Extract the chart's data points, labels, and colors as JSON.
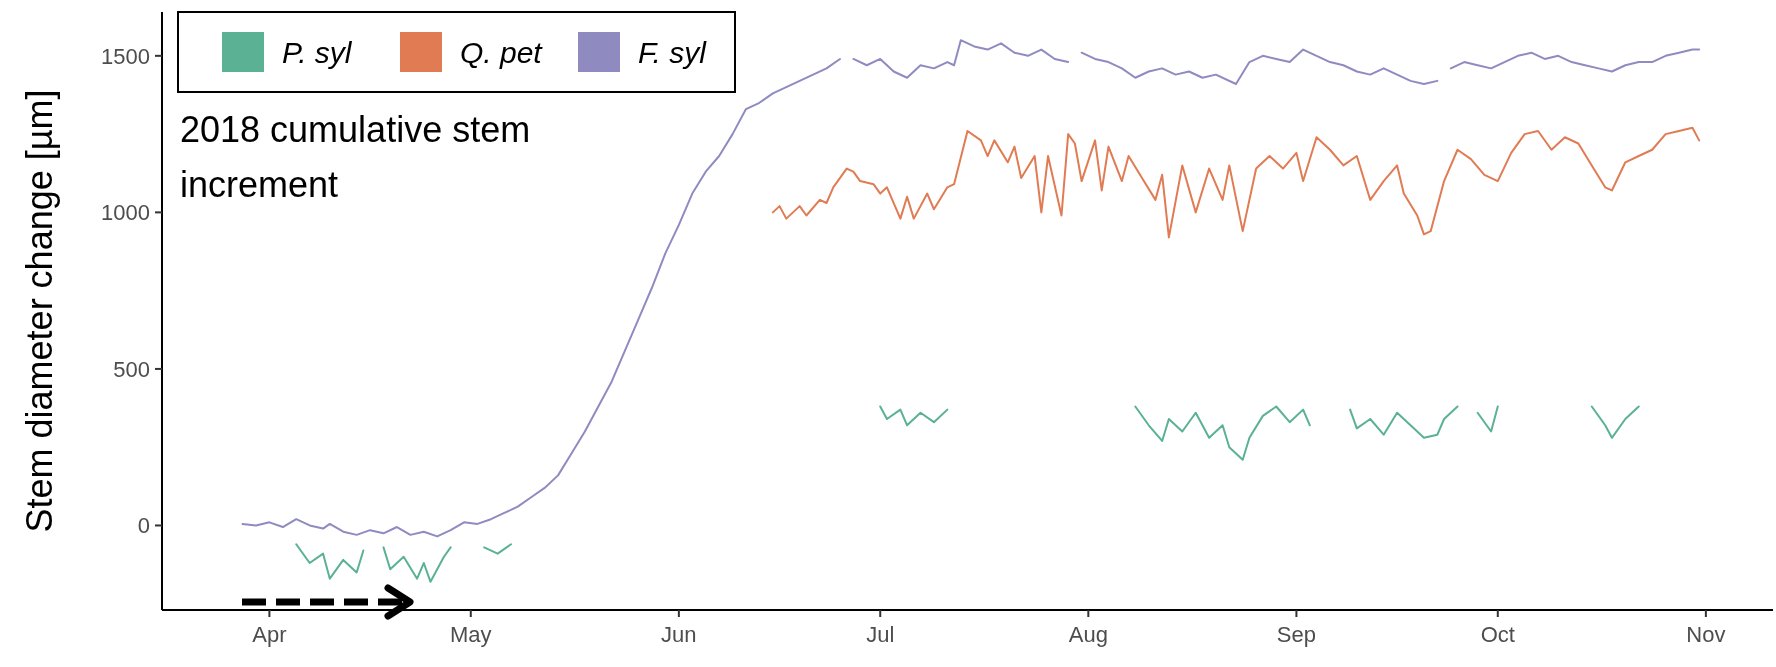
{
  "chart_data": {
    "type": "line",
    "ylabel": "Stem diameter change [µm]",
    "annotations": [
      "2018 cumulative stem increment"
    ],
    "xlim": [
      "2018-03-16",
      "2018-11-11"
    ],
    "xticks": [
      {
        "value": "2018-04-01",
        "label": "Apr"
      },
      {
        "value": "2018-05-01",
        "label": "May"
      },
      {
        "value": "2018-06-01",
        "label": "Jun"
      },
      {
        "value": "2018-07-01",
        "label": "Jul"
      },
      {
        "value": "2018-08-01",
        "label": "Aug"
      },
      {
        "value": "2018-09-01",
        "label": "Sep"
      },
      {
        "value": "2018-10-01",
        "label": "Oct"
      },
      {
        "value": "2018-11-01",
        "label": "Nov"
      }
    ],
    "ylim": [
      -270,
      1640
    ],
    "yticks": [
      0,
      500,
      1000,
      1500
    ],
    "grid": false,
    "legend": "top left",
    "series": [
      {
        "name": "P. syl",
        "color": "#5ab193",
        "x": [
          "2018-04-05",
          "2018-04-07",
          "2018-04-09",
          "2018-04-10",
          "2018-04-12",
          "2018-04-14",
          "2018-04-15",
          "2018-04-16",
          "2018-04-18",
          "2018-04-19",
          "2018-04-21",
          "2018-04-23",
          "2018-04-24",
          "2018-04-25",
          "2018-04-27",
          "2018-04-28",
          "2018-04-29",
          "2018-05-03",
          "2018-05-05",
          "2018-05-07",
          "2018-05-08",
          "2018-07-01",
          "2018-07-02",
          "2018-07-04",
          "2018-07-05",
          "2018-07-07",
          "2018-07-09",
          "2018-07-11",
          "2018-07-12",
          "2018-08-08",
          "2018-08-10",
          "2018-08-12",
          "2018-08-13",
          "2018-08-15",
          "2018-08-17",
          "2018-08-19",
          "2018-08-21",
          "2018-08-22",
          "2018-08-24",
          "2018-08-25",
          "2018-08-27",
          "2018-08-29",
          "2018-08-31",
          "2018-09-02",
          "2018-09-03",
          "2018-09-04",
          "2018-09-09",
          "2018-09-10",
          "2018-09-12",
          "2018-09-14",
          "2018-09-16",
          "2018-09-18",
          "2018-09-20",
          "2018-09-22",
          "2018-09-23",
          "2018-09-25",
          "2018-09-26",
          "2018-09-28",
          "2018-09-30",
          "2018-10-01",
          "2018-10-02",
          "2018-10-15",
          "2018-10-17",
          "2018-10-18",
          "2018-10-20",
          "2018-10-22"
        ],
        "values": [
          -60,
          -120,
          -90,
          -170,
          -110,
          -150,
          -80,
          null,
          -70,
          -140,
          -100,
          -170,
          -120,
          -180,
          -100,
          -70,
          null,
          -70,
          -90,
          -60,
          null,
          380,
          340,
          370,
          320,
          360,
          330,
          370,
          null,
          380,
          320,
          270,
          340,
          300,
          360,
          280,
          320,
          250,
          210,
          280,
          350,
          380,
          330,
          370,
          320,
          null,
          370,
          310,
          340,
          290,
          360,
          320,
          280,
          290,
          340,
          380,
          null,
          360,
          300,
          380,
          null,
          380,
          320,
          280,
          340,
          380
        ]
      },
      {
        "name": "Q. pet",
        "color": "#e07b53",
        "x": [
          "2018-06-15",
          "2018-06-16",
          "2018-06-17",
          "2018-06-19",
          "2018-06-20",
          "2018-06-22",
          "2018-06-23",
          "2018-06-24",
          "2018-06-26",
          "2018-06-27",
          "2018-06-28",
          "2018-06-30",
          "2018-07-01",
          "2018-07-02",
          "2018-07-04",
          "2018-07-05",
          "2018-07-06",
          "2018-07-08",
          "2018-07-09",
          "2018-07-11",
          "2018-07-12",
          "2018-07-14",
          "2018-07-16",
          "2018-07-17",
          "2018-07-18",
          "2018-07-20",
          "2018-07-21",
          "2018-07-22",
          "2018-07-24",
          "2018-07-25",
          "2018-07-26",
          "2018-07-28",
          "2018-07-29",
          "2018-07-30",
          "2018-07-31",
          "2018-08-02",
          "2018-08-03",
          "2018-08-04",
          "2018-08-06",
          "2018-08-07",
          "2018-08-09",
          "2018-08-11",
          "2018-08-12",
          "2018-08-13",
          "2018-08-15",
          "2018-08-17",
          "2018-08-19",
          "2018-08-21",
          "2018-08-22",
          "2018-08-24",
          "2018-08-26",
          "2018-08-28",
          "2018-08-30",
          "2018-09-01",
          "2018-09-02",
          "2018-09-04",
          "2018-09-06",
          "2018-09-08",
          "2018-09-10",
          "2018-09-12",
          "2018-09-14",
          "2018-09-16",
          "2018-09-17",
          "2018-09-19",
          "2018-09-20",
          "2018-09-21",
          "2018-09-23",
          "2018-09-25",
          "2018-09-27",
          "2018-09-29",
          "2018-10-01",
          "2018-10-03",
          "2018-10-05",
          "2018-10-07",
          "2018-10-09",
          "2018-10-11",
          "2018-10-13",
          "2018-10-15",
          "2018-10-17",
          "2018-10-18",
          "2018-10-20",
          "2018-10-22",
          "2018-10-24",
          "2018-10-26",
          "2018-10-28",
          "2018-10-30",
          "2018-10-31"
        ],
        "values": [
          1000,
          1020,
          980,
          1020,
          990,
          1040,
          1030,
          1080,
          1140,
          1130,
          1100,
          1090,
          1060,
          1080,
          980,
          1050,
          980,
          1060,
          1010,
          1080,
          1090,
          1260,
          1230,
          1180,
          1230,
          1160,
          1210,
          1110,
          1180,
          1000,
          1180,
          990,
          1250,
          1220,
          1100,
          1230,
          1070,
          1210,
          1100,
          1180,
          1110,
          1040,
          1120,
          920,
          1150,
          1000,
          1140,
          1040,
          1150,
          940,
          1140,
          1180,
          1140,
          1190,
          1100,
          1240,
          1200,
          1150,
          1180,
          1040,
          1100,
          1150,
          1060,
          990,
          930,
          940,
          1100,
          1200,
          1170,
          1120,
          1100,
          1190,
          1250,
          1260,
          1200,
          1240,
          1220,
          1150,
          1080,
          1070,
          1160,
          1180,
          1200,
          1250,
          1260,
          1270,
          1230
        ]
      },
      {
        "name": "F. syl",
        "color": "#8f8bc1",
        "x": [
          "2018-03-28",
          "2018-03-30",
          "2018-04-01",
          "2018-04-03",
          "2018-04-05",
          "2018-04-07",
          "2018-04-09",
          "2018-04-10",
          "2018-04-12",
          "2018-04-14",
          "2018-04-16",
          "2018-04-18",
          "2018-04-20",
          "2018-04-22",
          "2018-04-24",
          "2018-04-26",
          "2018-04-28",
          "2018-04-30",
          "2018-05-02",
          "2018-05-04",
          "2018-05-06",
          "2018-05-08",
          "2018-05-10",
          "2018-05-12",
          "2018-05-14",
          "2018-05-16",
          "2018-05-18",
          "2018-05-20",
          "2018-05-22",
          "2018-05-24",
          "2018-05-26",
          "2018-05-28",
          "2018-05-30",
          "2018-06-01",
          "2018-06-03",
          "2018-06-05",
          "2018-06-07",
          "2018-06-09",
          "2018-06-11",
          "2018-06-13",
          "2018-06-15",
          "2018-06-17",
          "2018-06-19",
          "2018-06-21",
          "2018-06-23",
          "2018-06-25",
          "2018-06-26",
          "2018-06-27",
          "2018-06-29",
          "2018-07-01",
          "2018-07-03",
          "2018-07-05",
          "2018-07-07",
          "2018-07-09",
          "2018-07-11",
          "2018-07-12",
          "2018-07-13",
          "2018-07-15",
          "2018-07-17",
          "2018-07-19",
          "2018-07-21",
          "2018-07-23",
          "2018-07-25",
          "2018-07-27",
          "2018-07-29",
          "2018-07-30",
          "2018-07-31",
          "2018-08-02",
          "2018-08-04",
          "2018-08-06",
          "2018-08-08",
          "2018-08-10",
          "2018-08-12",
          "2018-08-14",
          "2018-08-16",
          "2018-08-18",
          "2018-08-20",
          "2018-08-23",
          "2018-08-25",
          "2018-08-27",
          "2018-08-29",
          "2018-08-31",
          "2018-09-02",
          "2018-09-04",
          "2018-09-06",
          "2018-09-08",
          "2018-09-10",
          "2018-09-12",
          "2018-09-14",
          "2018-09-16",
          "2018-09-18",
          "2018-09-20",
          "2018-09-22",
          "2018-09-23",
          "2018-09-24",
          "2018-09-26",
          "2018-09-28",
          "2018-09-30",
          "2018-10-02",
          "2018-10-04",
          "2018-10-06",
          "2018-10-08",
          "2018-10-10",
          "2018-10-12",
          "2018-10-14",
          "2018-10-16",
          "2018-10-18",
          "2018-10-20",
          "2018-10-22",
          "2018-10-24",
          "2018-10-26",
          "2018-10-28",
          "2018-10-30",
          "2018-10-31"
        ],
        "values": [
          5,
          0,
          10,
          -5,
          20,
          0,
          -10,
          5,
          -20,
          -30,
          -15,
          -25,
          -5,
          -30,
          -20,
          -35,
          -15,
          10,
          5,
          20,
          40,
          60,
          90,
          120,
          160,
          230,
          300,
          380,
          460,
          560,
          660,
          760,
          870,
          960,
          1060,
          1130,
          1180,
          1250,
          1330,
          1350,
          1380,
          1400,
          1420,
          1440,
          1460,
          1490,
          null,
          1490,
          1470,
          1490,
          1450,
          1430,
          1470,
          1460,
          1480,
          1470,
          1550,
          1530,
          1520,
          1540,
          1510,
          1500,
          1520,
          1490,
          1480,
          null,
          1510,
          1490,
          1480,
          1460,
          1430,
          1450,
          1460,
          1440,
          1450,
          1430,
          1440,
          1410,
          1480,
          1500,
          1490,
          1480,
          1520,
          1500,
          1480,
          1470,
          1450,
          1440,
          1460,
          1440,
          1420,
          1410,
          1420,
          null,
          1460,
          1480,
          1470,
          1460,
          1480,
          1500,
          1510,
          1490,
          1500,
          1480,
          1470,
          1460,
          1450,
          1470,
          1480,
          1480,
          1500,
          1510,
          1520,
          1520
        ]
      }
    ]
  }
}
